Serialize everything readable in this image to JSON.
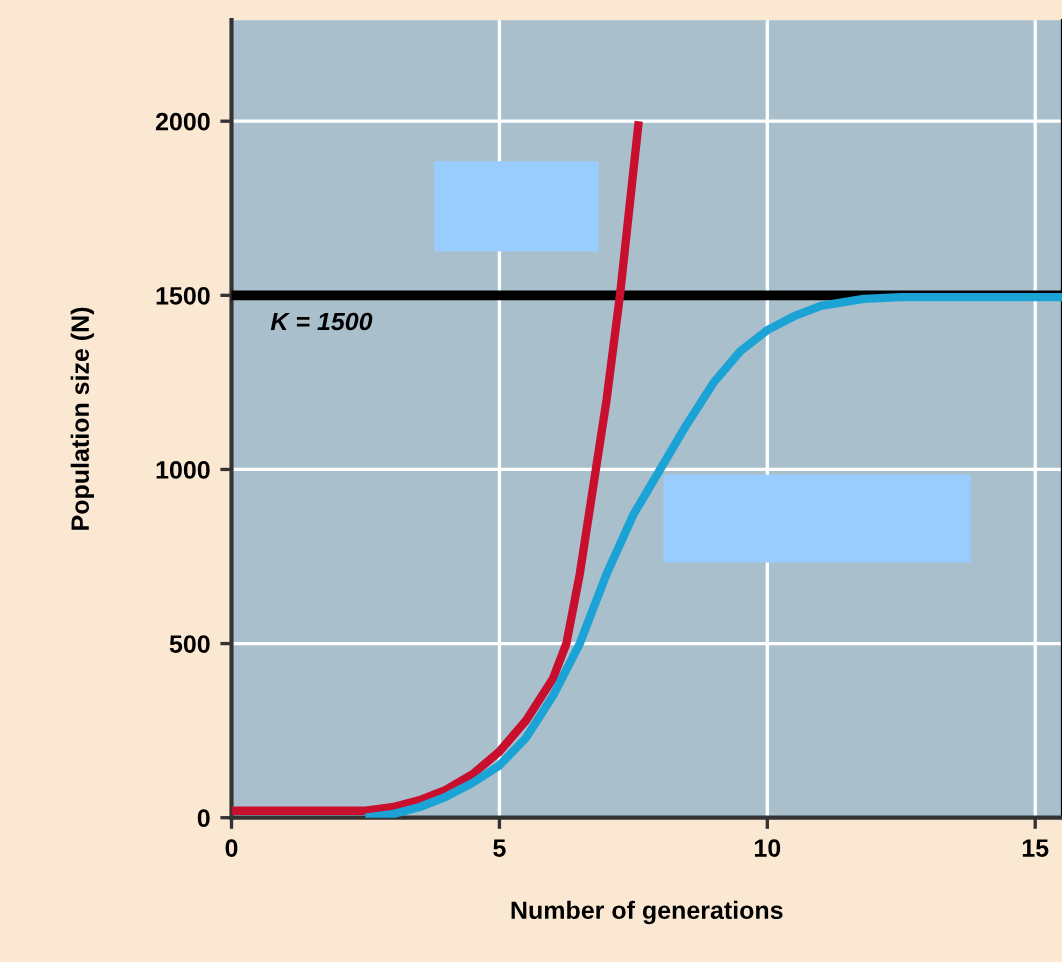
{
  "chart_data": {
    "type": "line",
    "xlabel": "Number of generations",
    "ylabel": "Population size (N)",
    "xlim": [
      0,
      15.5
    ],
    "ylim": [
      0,
      2290
    ],
    "xticks": [
      0,
      5,
      10,
      15
    ],
    "yticks": [
      0,
      500,
      1000,
      1500,
      2000
    ],
    "grid": true,
    "marker": "none",
    "line_style": "solid",
    "series": [
      {
        "color": "#c8102e",
        "x": [
          0,
          1,
          2,
          2.5,
          3,
          3.5,
          4,
          4.5,
          5,
          5.5,
          6,
          6.25,
          6.5,
          6.8,
          7,
          7.25,
          7.6
        ],
        "values": [
          20,
          20,
          20,
          20,
          30,
          50,
          80,
          125,
          190,
          280,
          400,
          500,
          700,
          1000,
          1200,
          1500,
          2000
        ]
      },
      {
        "color": "#1ba3d6",
        "x": [
          2.5,
          3,
          3.5,
          4,
          4.5,
          5,
          5.5,
          6,
          6.5,
          7,
          7.5,
          8,
          8.5,
          9,
          9.5,
          10,
          10.5,
          11,
          11.8,
          12.5,
          14,
          15.5
        ],
        "values": [
          0,
          10,
          30,
          60,
          100,
          150,
          230,
          350,
          500,
          700,
          870,
          1000,
          1130,
          1250,
          1340,
          1400,
          1440,
          1470,
          1490,
          1495,
          1495,
          1495
        ]
      }
    ],
    "ref_lines": [
      {
        "axis": "y",
        "value": 1500,
        "label": "K = 1500",
        "color": "#000000",
        "line_style": "solid"
      }
    ]
  }
}
